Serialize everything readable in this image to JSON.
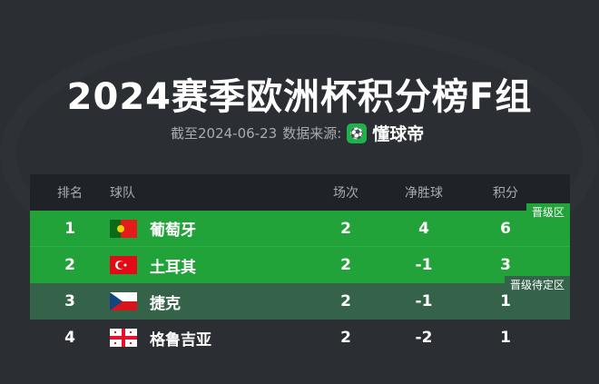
{
  "title": "2024赛季欧洲杯积分榜F组",
  "subtitle": {
    "date_text": "截至2024-06-23",
    "source_label": "数据来源:",
    "brand": "懂球帝",
    "logo_icon": "soccer-ball-icon"
  },
  "colors": {
    "qualified": "#22a33a",
    "pending": "#35634a",
    "background": "#2b2e32"
  },
  "table": {
    "headers": {
      "rank": "排名",
      "team": "球队",
      "played": "场次",
      "goal_diff": "净胜球",
      "points": "积分"
    },
    "zones": {
      "qualified": "晋级区",
      "pending": "晋级待定区"
    },
    "rows": [
      {
        "rank": "1",
        "team": "葡萄牙",
        "flag": "portugal",
        "played": "2",
        "goal_diff": "4",
        "points": "6"
      },
      {
        "rank": "2",
        "team": "土耳其",
        "flag": "turkey",
        "played": "2",
        "goal_diff": "-1",
        "points": "3"
      },
      {
        "rank": "3",
        "team": "捷克",
        "flag": "czechia",
        "played": "2",
        "goal_diff": "-1",
        "points": "1"
      },
      {
        "rank": "4",
        "team": "格鲁吉亚",
        "flag": "georgia",
        "played": "2",
        "goal_diff": "-2",
        "points": "1"
      }
    ]
  }
}
